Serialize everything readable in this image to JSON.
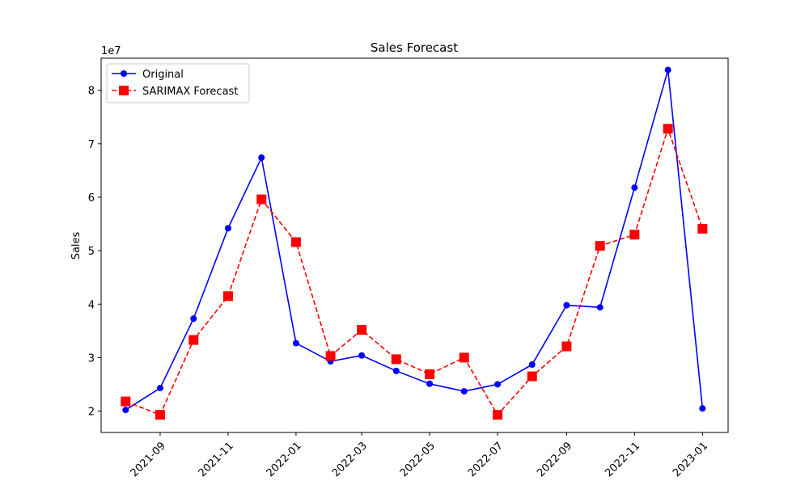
{
  "chart_data": {
    "type": "line",
    "title": "Sales Forecast",
    "xlabel": "",
    "ylabel": "Sales",
    "y_offset_label": "1e7",
    "y_scale": 10000000,
    "x": [
      "2021-08-01",
      "2021-09-01",
      "2021-10-01",
      "2021-11-01",
      "2021-12-01",
      "2022-01-01",
      "2022-02-01",
      "2022-03-01",
      "2022-04-01",
      "2022-05-01",
      "2022-06-01",
      "2022-07-01",
      "2022-08-01",
      "2022-09-01",
      "2022-10-01",
      "2022-11-01",
      "2022-12-01",
      "2023-01-01"
    ],
    "x_ticks": [
      "2021-09",
      "2021-11",
      "2022-01",
      "2022-03",
      "2022-05",
      "2022-07",
      "2022-09",
      "2022-11",
      "2023-01"
    ],
    "x_tick_dates": [
      "2021-09-01",
      "2021-11-01",
      "2022-01-01",
      "2022-03-01",
      "2022-05-01",
      "2022-07-01",
      "2022-09-01",
      "2022-11-01",
      "2023-01-01"
    ],
    "xlim": [
      "2021-07-10",
      "2023-01-24"
    ],
    "y_ticks": [
      2,
      3,
      4,
      5,
      6,
      7,
      8
    ],
    "ylim": [
      1.6,
      8.6
    ],
    "legend_position": "upper-left",
    "grid": false,
    "series": [
      {
        "name": "Original",
        "color": "#0000ff",
        "linestyle": "solid",
        "marker": "circle",
        "values": [
          2.02,
          2.43,
          3.73,
          5.42,
          6.74,
          3.27,
          2.93,
          3.04,
          2.75,
          2.51,
          2.37,
          2.5,
          2.87,
          3.98,
          3.94,
          6.18,
          8.38,
          2.05
        ]
      },
      {
        "name": "SARIMAX Forecast",
        "color": "#ff0000",
        "linestyle": "dashed",
        "marker": "square",
        "values": [
          2.18,
          1.93,
          3.33,
          4.15,
          5.96,
          5.16,
          3.03,
          3.52,
          2.97,
          2.69,
          3.0,
          1.93,
          2.65,
          3.21,
          5.09,
          5.3,
          7.28,
          5.41
        ]
      }
    ]
  }
}
